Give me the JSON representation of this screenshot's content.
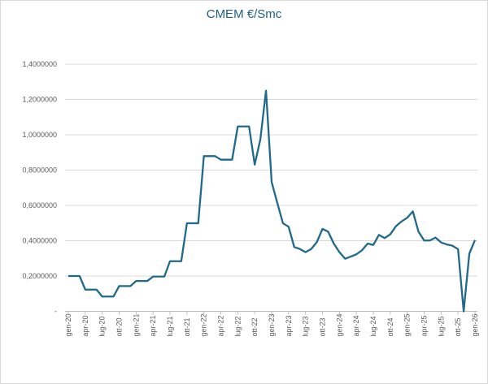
{
  "chart_data": {
    "type": "line",
    "title": "CMEM €/Smc",
    "xlabel": "",
    "ylabel": "",
    "ylim": [
      0,
      1.4
    ],
    "yticks": [
      {
        "v": 0,
        "label": "-"
      },
      {
        "v": 0.2,
        "label": "0,2000000"
      },
      {
        "v": 0.4,
        "label": "0,4000000"
      },
      {
        "v": 0.6,
        "label": "0,6000000"
      },
      {
        "v": 0.8,
        "label": "0,8000000"
      },
      {
        "v": 1.0,
        "label": "1,0000000"
      },
      {
        "v": 1.2,
        "label": "1,2000000"
      },
      {
        "v": 1.4,
        "label": "1,4000000"
      }
    ],
    "xticks": [
      "gen-20",
      "apr-20",
      "lug-20",
      "ott-20",
      "gen-21",
      "apr-21",
      "lug-21",
      "ott-21",
      "gen-22",
      "apr-22",
      "lug-22",
      "ott-22",
      "gen-23",
      "apr-23",
      "lug-23",
      "ott-23",
      "gen-24",
      "apr-24",
      "lug-24",
      "ott-24",
      "gen-25",
      "apr-25",
      "lug-25",
      "ott-25",
      "gen-26"
    ],
    "grid": true,
    "line_color": "#1f6a8a",
    "series": [
      {
        "name": "CMEM €/Smc",
        "values": [
          0.2,
          0.2,
          0.2,
          0.123,
          0.123,
          0.123,
          0.084,
          0.084,
          0.084,
          0.143,
          0.143,
          0.143,
          0.172,
          0.172,
          0.172,
          0.197,
          0.197,
          0.197,
          0.284,
          0.284,
          0.284,
          0.499,
          0.499,
          0.499,
          0.879,
          0.879,
          0.879,
          0.859,
          0.859,
          0.859,
          1.047,
          1.047,
          1.047,
          0.831,
          0.974,
          1.25,
          0.732,
          0.614,
          0.499,
          0.479,
          0.364,
          0.353,
          0.335,
          0.353,
          0.392,
          0.467,
          0.451,
          0.384,
          0.335,
          0.298,
          0.31,
          0.323,
          0.346,
          0.384,
          0.376,
          0.433,
          0.415,
          0.436,
          0.482,
          0.509,
          0.53,
          0.566,
          0.451,
          0.401,
          0.401,
          0.418,
          0.39,
          0.379,
          0.372,
          0.352,
          0,
          0.327,
          0.404
        ]
      }
    ]
  }
}
